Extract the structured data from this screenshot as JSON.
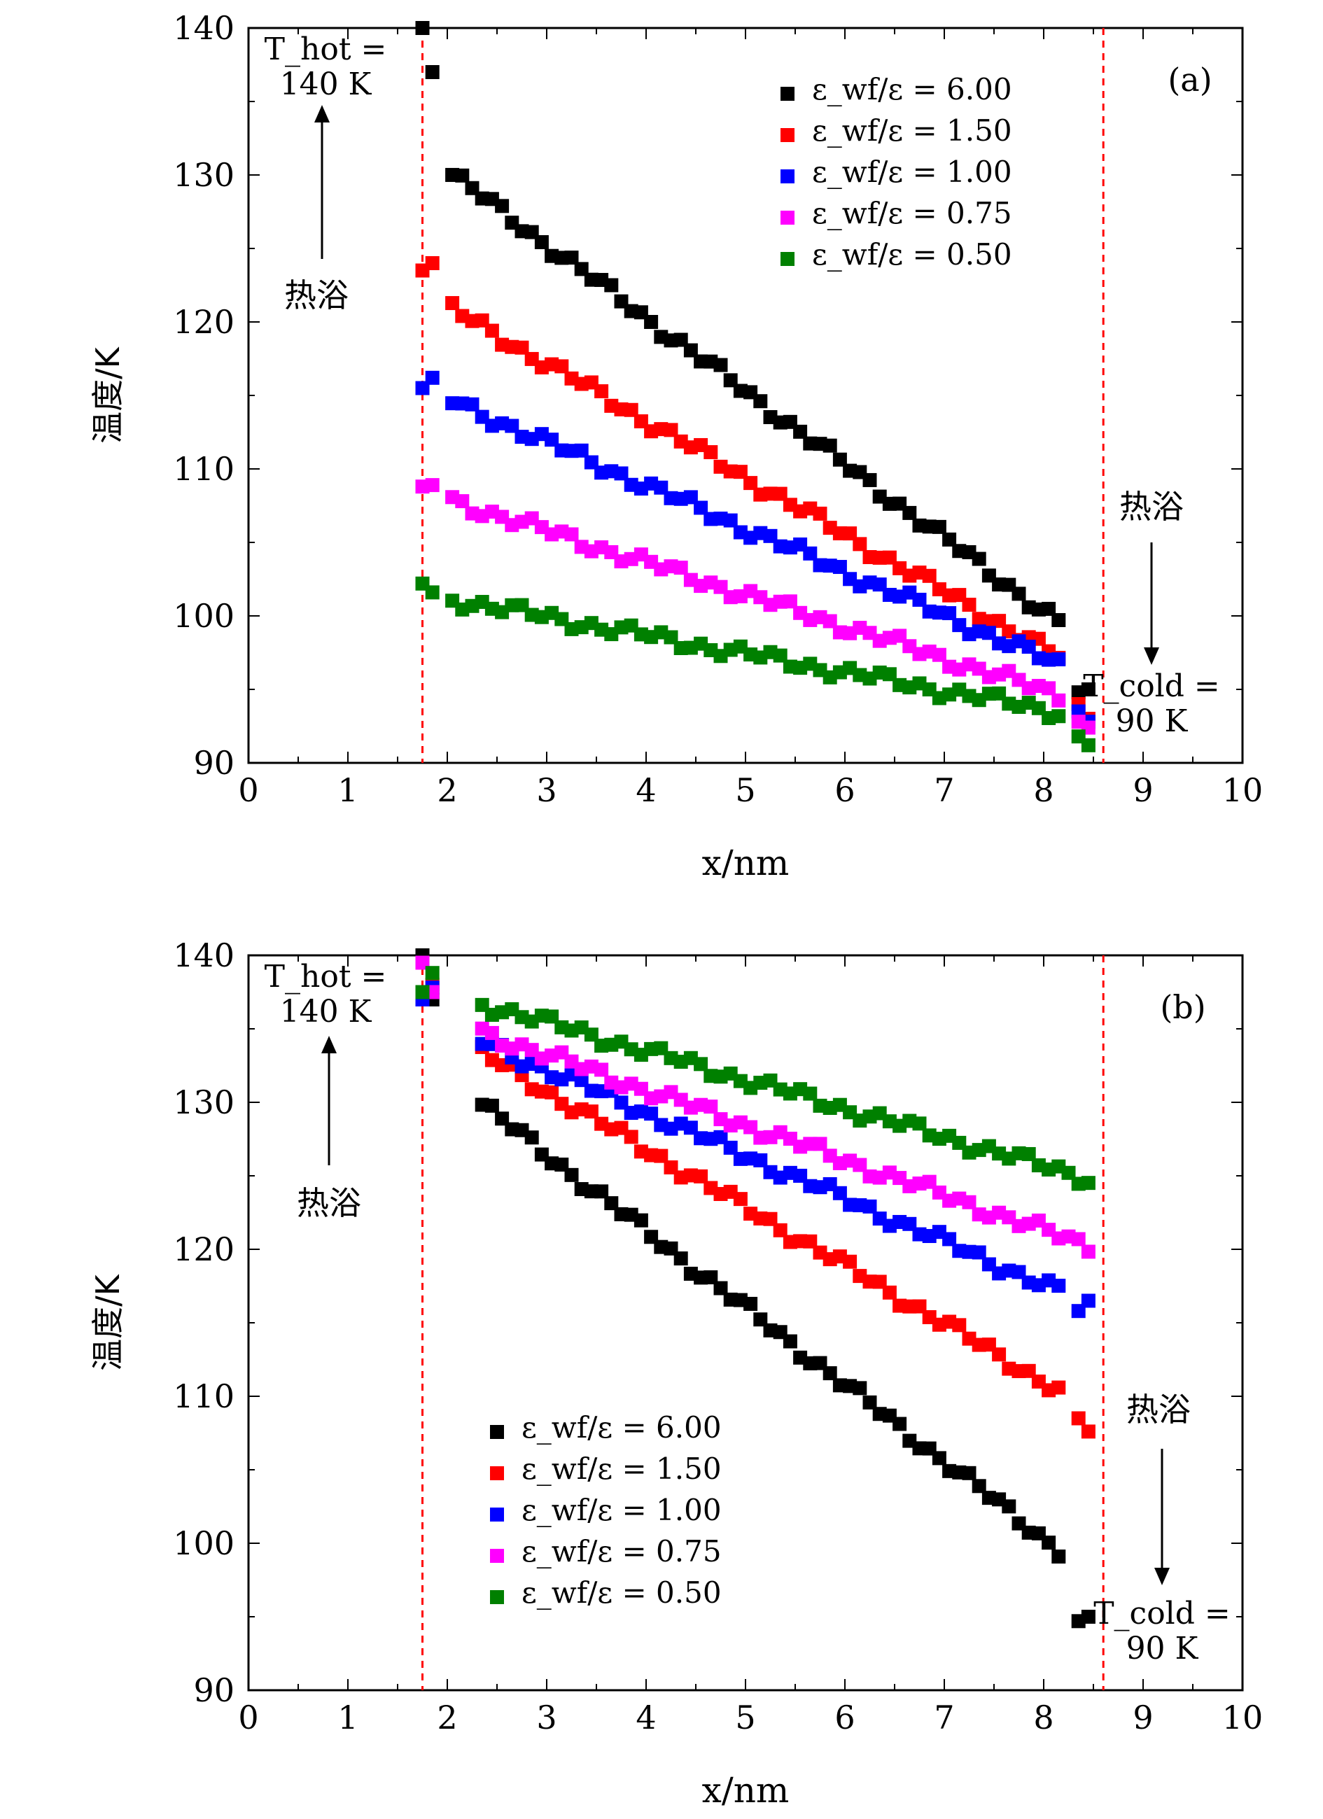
{
  "chart_data": [
    {
      "type": "scatter",
      "panel_label": "(a)",
      "xlabel": "x/nm",
      "ylabel": "温度/K",
      "xlim": [
        0,
        10
      ],
      "ylim": [
        90,
        140
      ],
      "x_ticks": [
        "0",
        "1",
        "2",
        "3",
        "4",
        "5",
        "6",
        "7",
        "8",
        "9",
        "10"
      ],
      "y_ticks": [
        "90",
        "100",
        "110",
        "120",
        "130",
        "140"
      ],
      "hot_bath": {
        "label": "热浴",
        "temp_line1": "T_hot =",
        "temp_line2": "140 K"
      },
      "cold_bath": {
        "label": "热浴",
        "temp_line1": "T_cold =",
        "temp_line2": "90 K"
      },
      "bath_boundaries_x": [
        1.75,
        8.6
      ],
      "legend_position": "top-right",
      "series": [
        {
          "name": "ε_wf/ε = 6.00",
          "color": "#000000",
          "x_start": 1.75,
          "x_end": 8.2,
          "y_start": 131.5,
          "y_end": 99.3,
          "edge_left": [
            [
              1.75,
              140.0
            ],
            [
              1.85,
              137.0
            ]
          ],
          "edge_right": [
            [
              8.35,
              94.8
            ],
            [
              8.45,
              95.0
            ]
          ]
        },
        {
          "name": "ε_wf/ε = 1.50",
          "color": "#ff0000",
          "x_start": 1.75,
          "x_end": 8.2,
          "y_start": 122.0,
          "y_end": 97.0,
          "edge_left": [
            [
              1.75,
              123.5
            ],
            [
              1.85,
              124.0
            ]
          ],
          "edge_right": [
            [
              8.35,
              94.0
            ],
            [
              8.45,
              93.0
            ]
          ]
        },
        {
          "name": "ε_wf/ε = 1.00",
          "color": "#0000ff",
          "x_start": 1.75,
          "x_end": 8.2,
          "y_start": 115.5,
          "y_end": 96.5,
          "edge_left": [
            [
              1.75,
              115.5
            ],
            [
              1.85,
              116.2
            ]
          ],
          "edge_right": [
            [
              8.35,
              93.5
            ],
            [
              8.45,
              92.8
            ]
          ]
        },
        {
          "name": "ε_wf/ε = 0.75",
          "color": "#ff00ff",
          "x_start": 1.75,
          "x_end": 8.2,
          "y_start": 108.5,
          "y_end": 94.5,
          "edge_left": [
            [
              1.75,
              108.8
            ],
            [
              1.85,
              108.9
            ]
          ],
          "edge_right": [
            [
              8.35,
              92.8
            ],
            [
              8.45,
              92.4
            ]
          ]
        },
        {
          "name": "ε_wf/ε = 0.50",
          "color": "#008000",
          "x_start": 1.75,
          "x_end": 8.2,
          "y_start": 101.5,
          "y_end": 93.4,
          "edge_left": [
            [
              1.75,
              102.2
            ],
            [
              1.85,
              101.6
            ]
          ],
          "edge_right": [
            [
              8.35,
              91.8
            ],
            [
              8.45,
              91.2
            ]
          ]
        }
      ]
    },
    {
      "type": "scatter",
      "panel_label": "(b)",
      "xlabel": "x/nm",
      "ylabel": "温度/K",
      "xlim": [
        0,
        10
      ],
      "ylim": [
        90,
        140
      ],
      "x_ticks": [
        "0",
        "1",
        "2",
        "3",
        "4",
        "5",
        "6",
        "7",
        "8",
        "9",
        "10"
      ],
      "y_ticks": [
        "90",
        "100",
        "110",
        "120",
        "130",
        "140"
      ],
      "hot_bath": {
        "label": "热浴",
        "temp_line1": "T_hot =",
        "temp_line2": "140 K"
      },
      "cold_bath": {
        "label": "热浴",
        "temp_line1": "T_cold =",
        "temp_line2": "90 K"
      },
      "bath_boundaries_x": [
        1.75,
        8.6
      ],
      "legend_position": "bottom-center",
      "series": [
        {
          "name": "ε_wf/ε = 6.00",
          "color": "#000000",
          "x_start": 2.05,
          "x_end": 8.2,
          "y_start": 131.4,
          "y_end": 99.3,
          "edge_left": [
            [
              1.75,
              140.0
            ],
            [
              1.85,
              137.0
            ]
          ],
          "edge_right": [
            [
              8.35,
              94.7
            ],
            [
              8.45,
              95.0
            ]
          ]
        },
        {
          "name": "ε_wf/ε = 1.50",
          "color": "#ff0000",
          "x_start": 2.05,
          "x_end": 8.2,
          "y_start": 134.5,
          "y_end": 110.2,
          "edge_left": [
            [
              1.75,
              137.5
            ],
            [
              1.85,
              138.0
            ]
          ],
          "edge_right": [
            [
              8.35,
              108.5
            ],
            [
              8.45,
              107.6
            ]
          ]
        },
        {
          "name": "ε_wf/ε = 1.00",
          "color": "#0000ff",
          "x_start": 2.05,
          "x_end": 8.2,
          "y_start": 135.0,
          "y_end": 117.0,
          "edge_left": [
            [
              1.75,
              137.0
            ],
            [
              1.85,
              137.8
            ]
          ],
          "edge_right": [
            [
              8.35,
              115.8
            ],
            [
              8.45,
              116.5
            ]
          ]
        },
        {
          "name": "ε_wf/ε = 0.75",
          "color": "#ff00ff",
          "x_start": 2.05,
          "x_end": 8.45,
          "y_start": 135.5,
          "y_end": 120.2,
          "edge_left": [
            [
              1.75,
              139.5
            ],
            [
              1.85,
              137.5
            ]
          ],
          "edge_right": []
        },
        {
          "name": "ε_wf/ε = 0.50",
          "color": "#008000",
          "x_start": 2.05,
          "x_end": 8.45,
          "y_start": 137.3,
          "y_end": 124.8,
          "edge_left": [
            [
              1.75,
              137.5
            ],
            [
              1.85,
              138.8
            ]
          ],
          "edge_right": []
        }
      ]
    }
  ]
}
